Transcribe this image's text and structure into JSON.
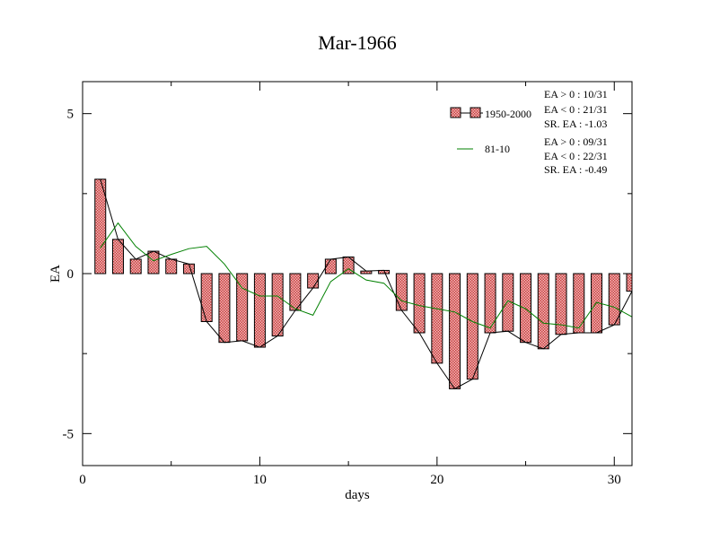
{
  "chart_data": {
    "type": "bar",
    "title": "Mar-1966",
    "xlabel": "days",
    "ylabel": "EA",
    "xlim": [
      0,
      31
    ],
    "ylim": [
      -6,
      6
    ],
    "x_ticks": [
      0,
      10,
      20,
      30
    ],
    "y_ticks": [
      -5,
      0,
      5
    ],
    "x_tick_labels": [
      "0",
      "10",
      "20",
      "30"
    ],
    "y_tick_labels": [
      "-5",
      "0",
      "5"
    ],
    "grid": false,
    "legend_position": "top-right",
    "x": [
      1,
      2,
      3,
      4,
      5,
      6,
      7,
      8,
      9,
      10,
      11,
      12,
      13,
      14,
      15,
      16,
      17,
      18,
      19,
      20,
      21,
      22,
      23,
      24,
      25,
      26,
      27,
      28,
      29,
      30,
      31
    ],
    "series": [
      {
        "name": "1950-2000",
        "type": "bar",
        "color": "#e06060",
        "values": [
          2.95,
          1.07,
          0.45,
          0.7,
          0.45,
          0.3,
          -1.5,
          -2.15,
          -2.1,
          -2.3,
          -1.95,
          -1.15,
          -0.45,
          0.45,
          0.52,
          0.08,
          0.1,
          -1.15,
          -1.85,
          -2.8,
          -3.6,
          -3.3,
          -1.85,
          -1.8,
          -2.15,
          -2.35,
          -1.9,
          -1.85,
          -1.85,
          -1.6,
          -0.55
        ]
      },
      {
        "name": "81-10",
        "type": "line",
        "color": "#008000",
        "values": [
          0.8,
          1.58,
          0.85,
          0.4,
          0.6,
          0.78,
          0.85,
          0.3,
          -0.45,
          -0.7,
          -0.7,
          -1.1,
          -1.3,
          -0.25,
          0.15,
          -0.2,
          -0.3,
          -0.85,
          -1.0,
          -1.1,
          -1.2,
          -1.5,
          -1.7,
          -0.85,
          -1.1,
          -1.55,
          -1.6,
          -1.7,
          -0.9,
          -1.05,
          -1.35
        ]
      }
    ],
    "legend_stats": {
      "bars": [
        "EA > 0 : 10/31",
        "EA < 0 : 21/31",
        "SR. EA : -1.03"
      ],
      "line": [
        "EA > 0 : 09/31",
        "EA < 0 : 22/31",
        "SR. EA : -0.49"
      ]
    }
  }
}
